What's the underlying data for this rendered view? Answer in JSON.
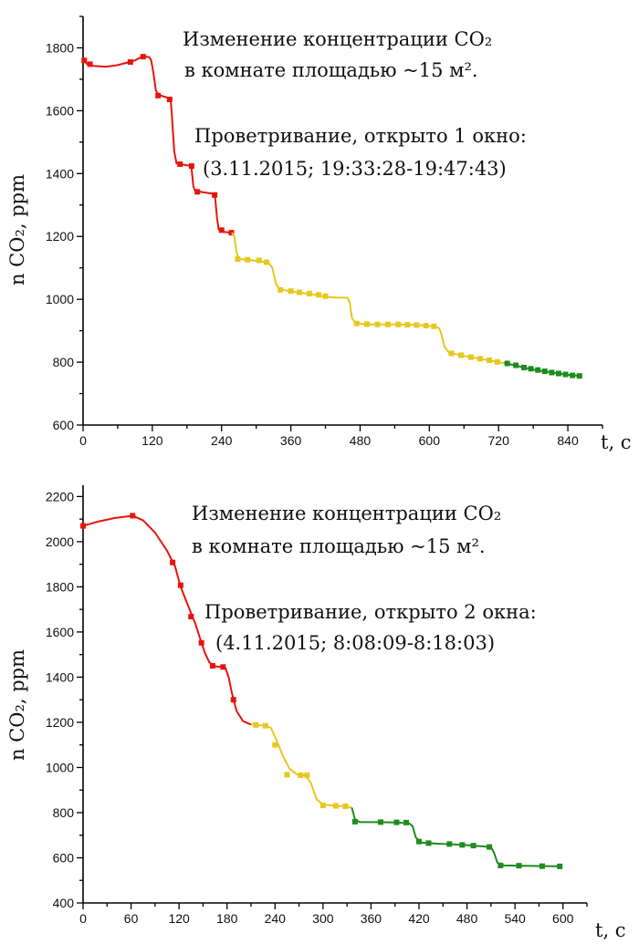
{
  "chart_data": [
    {
      "type": "line",
      "title": "",
      "xlabel": "t, c",
      "ylabel": "n CO₂, ppm",
      "xlim": [
        0,
        900
      ],
      "ylim": [
        600,
        1900
      ],
      "xticks": [
        "0",
        "120",
        "240",
        "360",
        "480",
        "600",
        "720",
        "840"
      ],
      "yticks": [
        "600",
        "800",
        "1000",
        "1200",
        "1400",
        "1600",
        "1800"
      ],
      "grid": false,
      "annotations": [
        "Изменение концентрации CO₂",
        "в комнате площадью ~15 м².",
        "Проветривание, открыто 1 окно:",
        "(3.11.2015;  19:33:28-19:47:43)"
      ],
      "series": [
        {
          "color": "#e8140c",
          "line": [
            [
              0,
              1765
            ],
            [
              6,
              1750
            ],
            [
              10,
              1745
            ],
            [
              20,
              1742
            ],
            [
              40,
              1740
            ],
            [
              60,
              1745
            ],
            [
              80,
              1755
            ],
            [
              90,
              1760
            ],
            [
              100,
              1770
            ],
            [
              108,
              1772
            ],
            [
              115,
              1770
            ],
            [
              118,
              1760
            ],
            [
              122,
              1720
            ],
            [
              126,
              1665
            ],
            [
              130,
              1652
            ],
            [
              140,
              1645
            ],
            [
              150,
              1640
            ],
            [
              152,
              1632
            ],
            [
              154,
              1580
            ],
            [
              158,
              1470
            ],
            [
              162,
              1432
            ],
            [
              175,
              1428
            ],
            [
              185,
              1425
            ],
            [
              188,
              1415
            ],
            [
              191,
              1360
            ],
            [
              194,
              1345
            ],
            [
              210,
              1340
            ],
            [
              225,
              1336
            ],
            [
              229,
              1320
            ],
            [
              232,
              1260
            ],
            [
              235,
              1222
            ],
            [
              242,
              1215
            ],
            [
              258,
              1212
            ]
          ],
          "points": [
            [
              2,
              1760
            ],
            [
              12,
              1748
            ],
            [
              82,
              1755
            ],
            [
              104,
              1772
            ],
            [
              130,
              1648
            ],
            [
              150,
              1636
            ],
            [
              168,
              1430
            ],
            [
              188,
              1424
            ],
            [
              198,
              1342
            ],
            [
              228,
              1332
            ],
            [
              240,
              1220
            ],
            [
              257,
              1212
            ]
          ]
        },
        {
          "color": "#e6c81e",
          "line": [
            [
              258,
              1212
            ],
            [
              262,
              1200
            ],
            [
              266,
              1150
            ],
            [
              270,
              1128
            ],
            [
              290,
              1125
            ],
            [
              310,
              1120
            ],
            [
              322,
              1115
            ],
            [
              328,
              1100
            ],
            [
              334,
              1050
            ],
            [
              340,
              1032
            ],
            [
              360,
              1025
            ],
            [
              380,
              1020
            ],
            [
              400,
              1015
            ],
            [
              420,
              1008
            ],
            [
              440,
              1005
            ],
            [
              458,
              1005
            ],
            [
              462,
              990
            ],
            [
              466,
              940
            ],
            [
              472,
              925
            ],
            [
              490,
              920
            ],
            [
              520,
              920
            ],
            [
              550,
              920
            ],
            [
              580,
              918
            ],
            [
              600,
              915
            ],
            [
              616,
              910
            ],
            [
              620,
              895
            ],
            [
              626,
              850
            ],
            [
              634,
              830
            ],
            [
              660,
              820
            ],
            [
              690,
              810
            ],
            [
              720,
              800
            ],
            [
              730,
              797
            ]
          ],
          "points": [
            [
              268,
              1128
            ],
            [
              285,
              1126
            ],
            [
              305,
              1124
            ],
            [
              318,
              1118
            ],
            [
              342,
              1030
            ],
            [
              360,
              1026
            ],
            [
              375,
              1022
            ],
            [
              392,
              1018
            ],
            [
              408,
              1014
            ],
            [
              420,
              1010
            ],
            [
              474,
              923
            ],
            [
              492,
              921
            ],
            [
              510,
              920
            ],
            [
              528,
              920
            ],
            [
              546,
              920
            ],
            [
              562,
              919
            ],
            [
              578,
              918
            ],
            [
              594,
              916
            ],
            [
              608,
              914
            ],
            [
              638,
              828
            ],
            [
              655,
              822
            ],
            [
              672,
              816
            ],
            [
              688,
              811
            ],
            [
              704,
              806
            ],
            [
              718,
              801
            ]
          ]
        },
        {
          "color": "#1e8c1e",
          "line": [
            [
              730,
              797
            ],
            [
              748,
              790
            ],
            [
              766,
              782
            ],
            [
              784,
              775
            ],
            [
              802,
              770
            ],
            [
              820,
              765
            ],
            [
              838,
              760
            ],
            [
              855,
              757
            ],
            [
              865,
              755
            ]
          ],
          "points": [
            [
              735,
              796
            ],
            [
              750,
              790
            ],
            [
              764,
              783
            ],
            [
              776,
              779
            ],
            [
              788,
              775
            ],
            [
              800,
              771
            ],
            [
              812,
              767
            ],
            [
              824,
              764
            ],
            [
              836,
              761
            ],
            [
              848,
              758
            ],
            [
              860,
              756
            ]
          ]
        }
      ]
    },
    {
      "type": "line",
      "title": "",
      "xlabel": "t, c",
      "ylabel": "n CO₂, ppm",
      "xlim": [
        0,
        630
      ],
      "ylim": [
        400,
        2250
      ],
      "xticks": [
        "0",
        "60",
        "120",
        "180",
        "240",
        "300",
        "360",
        "420",
        "480",
        "540",
        "600"
      ],
      "yticks": [
        "400",
        "600",
        "800",
        "1000",
        "1200",
        "1400",
        "1600",
        "1800",
        "2000",
        "2200"
      ],
      "grid": false,
      "annotations": [
        "Изменение концентрации CO₂",
        "в комнате площадью ~15 м².",
        "Проветривание, открыто 2 окна:",
        "(4.11.2015;  8:08:09-8:18:03)"
      ],
      "series": [
        {
          "color": "#e8140c",
          "line": [
            [
              0,
              2070
            ],
            [
              20,
              2090
            ],
            [
              40,
              2105
            ],
            [
              55,
              2112
            ],
            [
              62,
              2115
            ],
            [
              75,
              2095
            ],
            [
              90,
              2040
            ],
            [
              105,
              1960
            ],
            [
              115,
              1890
            ],
            [
              122,
              1800
            ],
            [
              132,
              1710
            ],
            [
              140,
              1640
            ],
            [
              146,
              1575
            ],
            [
              152,
              1510
            ],
            [
              158,
              1465
            ],
            [
              165,
              1448
            ],
            [
              172,
              1445
            ],
            [
              178,
              1440
            ],
            [
              182,
              1400
            ],
            [
              186,
              1330
            ],
            [
              192,
              1250
            ],
            [
              200,
              1205
            ],
            [
              210,
              1190
            ]
          ],
          "points": [
            [
              0,
              2070
            ],
            [
              62,
              2115
            ],
            [
              112,
              1908
            ],
            [
              122,
              1807
            ],
            [
              135,
              1668
            ],
            [
              148,
              1552
            ],
            [
              162,
              1450
            ],
            [
              175,
              1445
            ],
            [
              188,
              1300
            ]
          ]
        },
        {
          "color": "#e6c81e",
          "line": [
            [
              210,
              1190
            ],
            [
              228,
              1185
            ],
            [
              235,
              1175
            ],
            [
              242,
              1120
            ],
            [
              250,
              1050
            ],
            [
              258,
              995
            ],
            [
              268,
              968
            ],
            [
              278,
              965
            ],
            [
              285,
              930
            ],
            [
              292,
              860
            ],
            [
              300,
              835
            ],
            [
              316,
              830
            ],
            [
              328,
              828
            ],
            [
              336,
              822
            ]
          ],
          "points": [
            [
              216,
              1188
            ],
            [
              228,
              1185
            ],
            [
              240,
              1100
            ],
            [
              255,
              968
            ],
            [
              272,
              966
            ],
            [
              280,
              966
            ],
            [
              300,
              832
            ],
            [
              316,
              830
            ],
            [
              328,
              828
            ]
          ]
        },
        {
          "color": "#1e8c1e",
          "line": [
            [
              336,
              822
            ],
            [
              340,
              770
            ],
            [
              346,
              758
            ],
            [
              370,
              758
            ],
            [
              395,
              756
            ],
            [
              408,
              752
            ],
            [
              412,
              740
            ],
            [
              416,
              690
            ],
            [
              422,
              668
            ],
            [
              440,
              663
            ],
            [
              460,
              660
            ],
            [
              480,
              656
            ],
            [
              502,
              650
            ],
            [
              510,
              648
            ],
            [
              514,
              620
            ],
            [
              518,
              578
            ],
            [
              526,
              566
            ],
            [
              550,
              565
            ],
            [
              580,
              563
            ],
            [
              598,
              562
            ]
          ],
          "points": [
            [
              340,
              760
            ],
            [
              372,
              758
            ],
            [
              392,
              757
            ],
            [
              404,
              756
            ],
            [
              420,
              672
            ],
            [
              432,
              665
            ],
            [
              458,
              661
            ],
            [
              474,
              657
            ],
            [
              488,
              654
            ],
            [
              508,
              648
            ],
            [
              522,
              566
            ],
            [
              545,
              565
            ],
            [
              574,
              563
            ],
            [
              596,
              562
            ]
          ]
        }
      ]
    }
  ]
}
